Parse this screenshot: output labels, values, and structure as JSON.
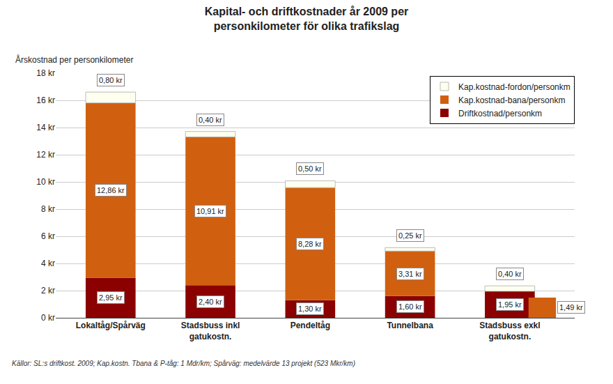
{
  "chart_data": {
    "type": "bar",
    "stacked": true,
    "title": "Kapital- och driftkostnader år 2009 per\npersonkilometer för olika trafikslag",
    "ylabel": "Årskostnad per personkilometer",
    "annotations": [
      "Källor: SL:s driftkost. 2009; Kap.kostn. Tbana & P-tåg: 1 Mdr/km; Spårväg: medelvärde 13 projekt (523 Mkr/km)"
    ],
    "categories": [
      "Lokaltåg/Spårväg",
      "Stadsbuss inkl\ngatukostn.",
      "Pendeltåg",
      "Tunnelbana",
      "Stadsbuss exkl\ngatukostn."
    ],
    "series": [
      {
        "name": "Driftkostnad/personkm",
        "color": "#8B0000",
        "values": [
          2.95,
          2.4,
          1.3,
          1.6,
          1.95
        ],
        "value_labels": [
          "2,95 kr",
          "2,40 kr",
          "1,30 kr",
          "1,60 kr",
          "1,95 kr"
        ]
      },
      {
        "name": "Kap.kostnad-bana/personkm",
        "color": "#D06010",
        "values": [
          12.86,
          10.91,
          8.28,
          3.31,
          0.0
        ],
        "value_labels": [
          "12,86 kr",
          "10,91 kr",
          "8,28 kr",
          "3,31 kr",
          null
        ]
      },
      {
        "name": "Kap.kostnad-fordon/personkm",
        "color": "#FFFFF0",
        "values": [
          0.8,
          0.4,
          0.5,
          0.25,
          0.4
        ],
        "value_labels": [
          "0,80 kr",
          "0,40 kr",
          "0,50 kr",
          "0,25 kr",
          "0,40 kr"
        ]
      },
      {
        "color": "#D06010",
        "stacked": false,
        "values": [
          null,
          null,
          null,
          null,
          1.49
        ],
        "value_labels": [
          null,
          null,
          null,
          null,
          "1,49 kr"
        ]
      }
    ],
    "ylim": [
      0,
      18
    ],
    "yticks": [
      {
        "value": 0,
        "label": "0 kr"
      },
      {
        "value": 2,
        "label": "2 kr"
      },
      {
        "value": 4,
        "label": "4 kr"
      },
      {
        "value": 6,
        "label": "6 kr"
      },
      {
        "value": 8,
        "label": "8 kr"
      },
      {
        "value": 10,
        "label": "10 kr"
      },
      {
        "value": 12,
        "label": "12 kr"
      },
      {
        "value": 14,
        "label": "14 kr"
      },
      {
        "value": 16,
        "label": "16 kr"
      },
      {
        "value": 18,
        "label": "18 kr"
      }
    ],
    "grid": true,
    "legend": "upper right",
    "data_labels": true
  }
}
